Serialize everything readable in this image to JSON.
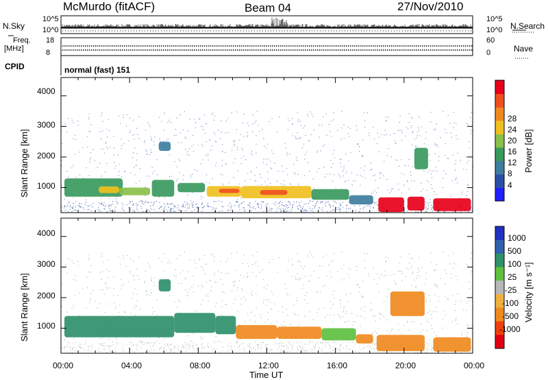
{
  "header": {
    "title": "McMurdo (fitACF)",
    "beam": "Beam 04",
    "date": "27/Nov/2010"
  },
  "strip_panels": {
    "nsky_label": "N.Sky",
    "nsky_ticks": [
      "10^5",
      "10^0"
    ],
    "nsearch_label": "N.Search",
    "nsearch_ticks": [
      "10^5",
      "10^0"
    ],
    "freq_label": "Freq.",
    "freq_unit": "[MHz]",
    "freq_ticks": [
      "18",
      "8"
    ],
    "nave_label": "Nave",
    "nave_ticks": [
      "60",
      "0"
    ],
    "cpid_label": "CPID",
    "cpid_value": "normal (fast) 151"
  },
  "x_axis": {
    "title": "Time UT",
    "ticks": [
      "00:00",
      "04:00",
      "08:00",
      "12:00",
      "16:00",
      "20:00",
      "00:00"
    ]
  },
  "colors": {
    "power_scale": [
      "#1f1fff",
      "#2a4fa8",
      "#3e7fa0",
      "#3a9a5e",
      "#8ac04a",
      "#f0c020",
      "#f08a20",
      "#f0501e",
      "#e8001a"
    ],
    "velocity_scale": [
      "#2030c0",
      "#3060b0",
      "#30906a",
      "#60c040",
      "#b8b8b8",
      "#f0b040",
      "#f08a20",
      "#f04010",
      "#e00010"
    ]
  },
  "chart_data": [
    {
      "type": "heatmap",
      "panel": "power",
      "ylabel": "Slant Range [km]",
      "xlabel": "",
      "x_range_hours": [
        0,
        24
      ],
      "ylim": [
        180,
        4600
      ],
      "y_ticks": [
        "4000",
        "3000",
        "2000",
        "1000"
      ],
      "colorbar_label": "Power [dB]",
      "colorbar_ticks": [
        "28",
        "24",
        "20",
        "16",
        "12",
        "8",
        "4"
      ],
      "colorbar_range": [
        0,
        32
      ],
      "regions": [
        {
          "t0": 0.2,
          "t1": 3.6,
          "r0": 700,
          "r1": 1300,
          "value": 11
        },
        {
          "t0": 2.2,
          "t1": 3.4,
          "r0": 820,
          "r1": 1040,
          "value": 20
        },
        {
          "t0": 3.4,
          "t1": 5.2,
          "r0": 750,
          "r1": 1000,
          "value": 16
        },
        {
          "t0": 5.3,
          "t1": 6.6,
          "r0": 700,
          "r1": 1250,
          "value": 14
        },
        {
          "t0": 5.7,
          "t1": 6.4,
          "r0": 2200,
          "r1": 2500,
          "value": 8
        },
        {
          "t0": 6.8,
          "t1": 8.4,
          "r0": 850,
          "r1": 1150,
          "value": 13
        },
        {
          "t0": 8.5,
          "t1": 10.5,
          "r0": 700,
          "r1": 1050,
          "value": 18
        },
        {
          "t0": 9.2,
          "t1": 10.4,
          "r0": 820,
          "r1": 960,
          "value": 26
        },
        {
          "t0": 10.5,
          "t1": 14.6,
          "r0": 650,
          "r1": 1050,
          "value": 19
        },
        {
          "t0": 11.6,
          "t1": 13.2,
          "r0": 760,
          "r1": 920,
          "value": 26
        },
        {
          "t0": 14.6,
          "t1": 16.8,
          "r0": 600,
          "r1": 950,
          "value": 14
        },
        {
          "t0": 16.8,
          "t1": 18.2,
          "r0": 450,
          "r1": 750,
          "value": 9
        },
        {
          "t0": 18.5,
          "t1": 20.0,
          "r0": 200,
          "r1": 680,
          "value": 30
        },
        {
          "t0": 20.2,
          "t1": 21.2,
          "r0": 250,
          "r1": 700,
          "value": 29
        },
        {
          "t0": 21.7,
          "t1": 23.9,
          "r0": 230,
          "r1": 650,
          "value": 29
        },
        {
          "t0": 20.6,
          "t1": 21.4,
          "r0": 1600,
          "r1": 2300,
          "value": 12
        }
      ]
    },
    {
      "type": "heatmap",
      "panel": "velocity",
      "ylabel": "Slant Range [km]",
      "xlabel": "Time UT",
      "x_range_hours": [
        0,
        24
      ],
      "ylim": [
        180,
        4600
      ],
      "y_ticks": [
        "4000",
        "3000",
        "2000",
        "1000"
      ],
      "colorbar_label": "Velocity [m s⁻¹]",
      "colorbar_ticks": [
        "1000",
        "500",
        "100",
        "25",
        "-25",
        "-100",
        "-500",
        "-1000"
      ],
      "regions": [
        {
          "t0": 0.2,
          "t1": 6.6,
          "r0": 700,
          "r1": 1400,
          "value": 200
        },
        {
          "t0": 5.7,
          "t1": 6.4,
          "r0": 2200,
          "r1": 2600,
          "value": 150
        },
        {
          "t0": 6.6,
          "t1": 9.0,
          "r0": 850,
          "r1": 1500,
          "value": 220
        },
        {
          "t0": 9.0,
          "t1": 10.2,
          "r0": 800,
          "r1": 1400,
          "value": 180
        },
        {
          "t0": 10.2,
          "t1": 12.6,
          "r0": 650,
          "r1": 1100,
          "value": -150
        },
        {
          "t0": 12.6,
          "t1": 15.2,
          "r0": 650,
          "r1": 1050,
          "value": -200
        },
        {
          "t0": 15.2,
          "t1": 17.2,
          "r0": 600,
          "r1": 1000,
          "value": 40
        },
        {
          "t0": 17.2,
          "t1": 18.2,
          "r0": 500,
          "r1": 800,
          "value": -300
        },
        {
          "t0": 18.4,
          "t1": 21.2,
          "r0": 250,
          "r1": 780,
          "value": -200
        },
        {
          "t0": 21.7,
          "t1": 23.9,
          "r0": 230,
          "r1": 700,
          "value": -250
        },
        {
          "t0": 19.2,
          "t1": 21.2,
          "r0": 1400,
          "r1": 2200,
          "value": -200
        }
      ]
    }
  ]
}
